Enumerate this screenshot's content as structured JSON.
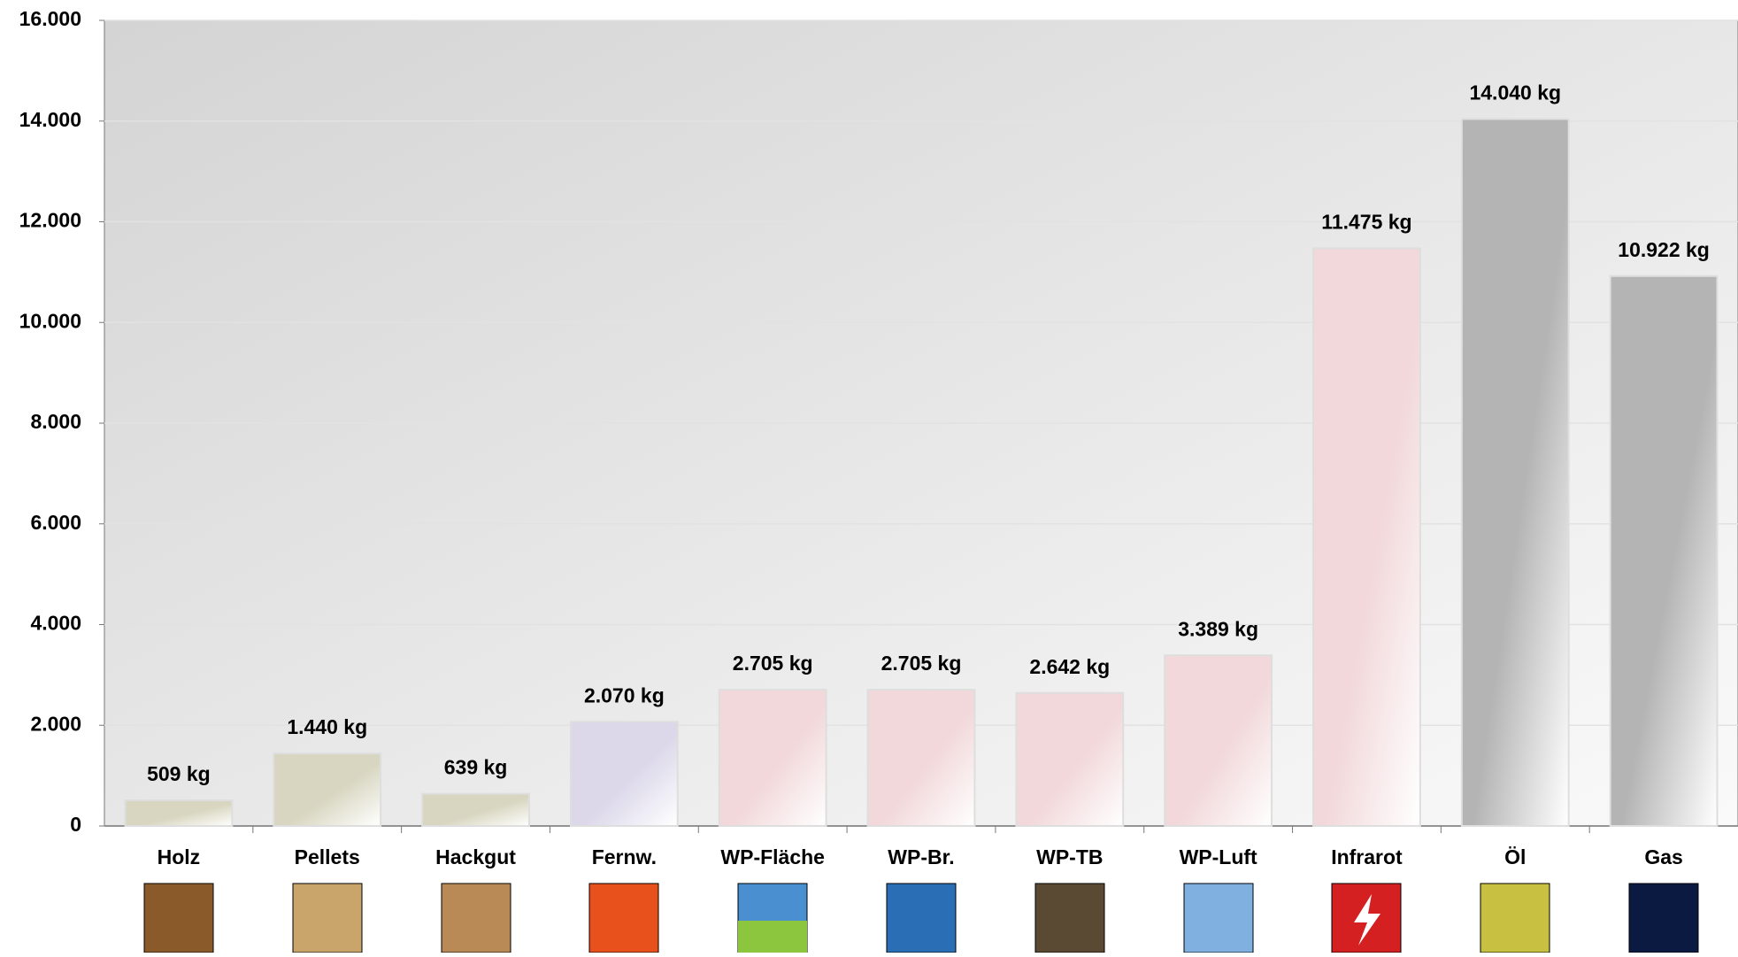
{
  "chart_data": {
    "type": "bar",
    "categories": [
      "Holz",
      "Pellets",
      "Hackgut",
      "Fernw.",
      "WP-Fläche",
      "WP-Br.",
      "WP-TB",
      "WP-Luft",
      "Infrarot",
      "Öl",
      "Gas"
    ],
    "values": [
      509,
      1440,
      639,
      2070,
      2705,
      2705,
      2642,
      3389,
      11475,
      14040,
      10922
    ],
    "value_labels": [
      "509 kg",
      "1.440 kg",
      "639 kg",
      "2.070 kg",
      "2.705 kg",
      "2.705 kg",
      "2.642 kg",
      "3.389 kg",
      "11.475 kg",
      "14.040 kg",
      "10.922 kg"
    ],
    "colors": [
      "#d8d6c0",
      "#d8d6c0",
      "#d8d6c0",
      "#dcd8ea",
      "#f2d8da",
      "#f2d8da",
      "#f2d8da",
      "#f2d8da",
      "#f2d8da",
      "#b4b4b4",
      "#b4b4b4"
    ],
    "ylim": [
      0,
      16000
    ],
    "yticks": [
      0,
      {
        "value": 2000,
        "label": "2.000"
      },
      {
        "value": 4000,
        "label": "4.000"
      },
      {
        "value": 6000,
        "label": "6.000"
      },
      {
        "value": 8000,
        "label": "8.000"
      },
      {
        "value": 10000,
        "label": "10.000"
      },
      {
        "value": 12000,
        "label": "12.000"
      },
      {
        "value": 14000,
        "label": "14.000"
      },
      {
        "value": 16000,
        "label": "16.000"
      }
    ],
    "grid": true
  }
}
